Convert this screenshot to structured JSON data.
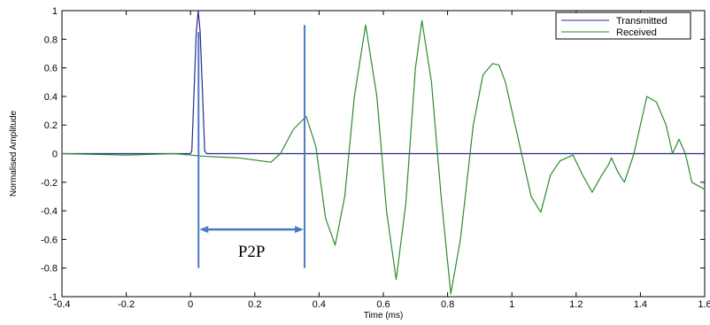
{
  "chart_data": {
    "type": "line",
    "xlabel": "Time (ms)",
    "ylabel": "Normalised Amplitude",
    "xlim": [
      -0.4,
      1.6
    ],
    "ylim": [
      -1,
      1
    ],
    "x_ticks": [
      "-0.4",
      "-0.2",
      "0",
      "0.2",
      "0.4",
      "0.6",
      "0.8",
      "1",
      "1.2",
      "1.4",
      "1.6"
    ],
    "x_tick_values": [
      -0.4,
      -0.2,
      0,
      0.2,
      0.4,
      0.6,
      0.8,
      1,
      1.2,
      1.4,
      1.6
    ],
    "y_ticks": [
      "-1",
      "-0.8",
      "-0.6",
      "-0.4",
      "-0.2",
      "0",
      "0.2",
      "0.4",
      "0.6",
      "0.8",
      "1"
    ],
    "y_tick_values": [
      -1,
      -0.8,
      -0.6,
      -0.4,
      -0.2,
      0,
      0.2,
      0.4,
      0.6,
      0.8,
      1
    ],
    "grid": false,
    "legend_position": "top-right",
    "series": [
      {
        "name": "Transmitted",
        "color": "#2a2a8c",
        "points": [
          [
            -0.4,
            0
          ],
          [
            0.0,
            0
          ],
          [
            0.004,
            0.02
          ],
          [
            0.012,
            0.5
          ],
          [
            0.018,
            0.85
          ],
          [
            0.024,
            1.0
          ],
          [
            0.03,
            0.85
          ],
          [
            0.036,
            0.5
          ],
          [
            0.044,
            0.02
          ],
          [
            0.05,
            0
          ],
          [
            1.6,
            0
          ]
        ]
      },
      {
        "name": "Received",
        "color": "#2e8b2e",
        "points": [
          [
            -0.4,
            0.0
          ],
          [
            -0.2,
            -0.01
          ],
          [
            -0.05,
            0.0
          ],
          [
            0.05,
            -0.02
          ],
          [
            0.15,
            -0.03
          ],
          [
            0.25,
            -0.06
          ],
          [
            0.28,
            0.0
          ],
          [
            0.32,
            0.17
          ],
          [
            0.36,
            0.26
          ],
          [
            0.39,
            0.05
          ],
          [
            0.42,
            -0.45
          ],
          [
            0.45,
            -0.64
          ],
          [
            0.48,
            -0.3
          ],
          [
            0.51,
            0.4
          ],
          [
            0.545,
            0.9
          ],
          [
            0.58,
            0.4
          ],
          [
            0.61,
            -0.4
          ],
          [
            0.64,
            -0.88
          ],
          [
            0.67,
            -0.35
          ],
          [
            0.7,
            0.6
          ],
          [
            0.72,
            0.93
          ],
          [
            0.75,
            0.5
          ],
          [
            0.78,
            -0.3
          ],
          [
            0.81,
            -0.98
          ],
          [
            0.84,
            -0.6
          ],
          [
            0.88,
            0.2
          ],
          [
            0.91,
            0.55
          ],
          [
            0.94,
            0.63
          ],
          [
            0.96,
            0.62
          ],
          [
            0.98,
            0.5
          ],
          [
            1.02,
            0.1
          ],
          [
            1.06,
            -0.3
          ],
          [
            1.09,
            -0.41
          ],
          [
            1.12,
            -0.15
          ],
          [
            1.15,
            -0.05
          ],
          [
            1.19,
            -0.01
          ],
          [
            1.22,
            -0.15
          ],
          [
            1.25,
            -0.27
          ],
          [
            1.28,
            -0.15
          ],
          [
            1.3,
            -0.08
          ],
          [
            1.31,
            -0.03
          ],
          [
            1.33,
            -0.13
          ],
          [
            1.35,
            -0.2
          ],
          [
            1.38,
            0.0
          ],
          [
            1.42,
            0.4
          ],
          [
            1.45,
            0.36
          ],
          [
            1.48,
            0.2
          ],
          [
            1.5,
            0.0
          ],
          [
            1.52,
            0.1
          ],
          [
            1.54,
            0.0
          ],
          [
            1.56,
            -0.2
          ],
          [
            1.6,
            -0.25
          ]
        ]
      }
    ],
    "annotation": {
      "label": "P2P",
      "x_start": 0.025,
      "x_end": 0.355,
      "line_top_y": [
        0.85,
        0.85
      ],
      "line_bottom_y": -0.8,
      "arrow_y": -0.53,
      "color": "#4a7bc0"
    }
  }
}
